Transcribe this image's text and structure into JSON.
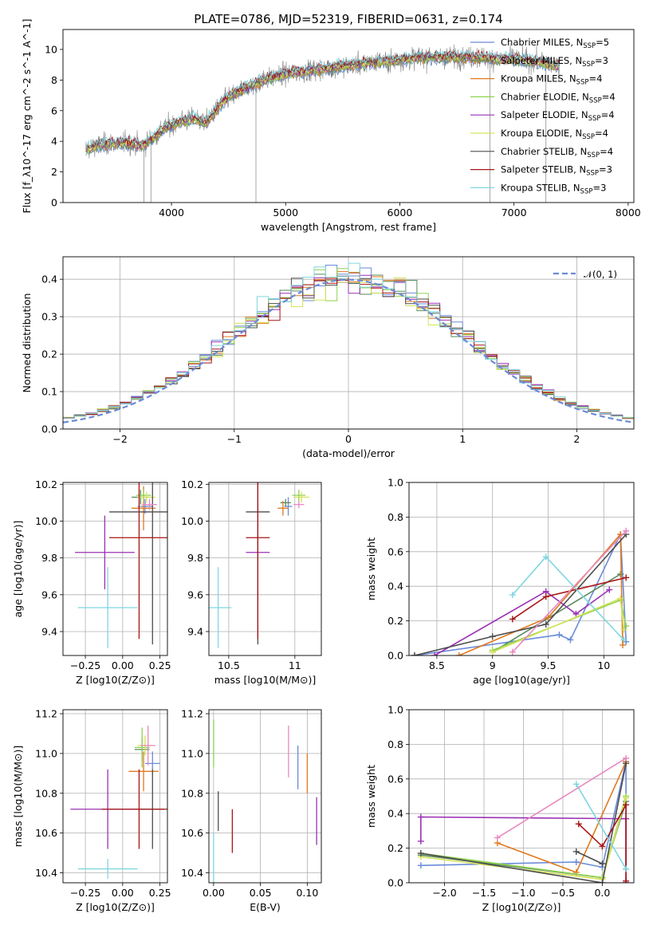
{
  "figure_title": "PLATE=0786, MJD=52319, FIBERID=0631, z=0.174",
  "colors": {
    "chabrier_miles": "#6a8bd8",
    "salpeter_miles": "#5a8a5a",
    "kroupa_miles": "#e07a1e",
    "chabrier_elodie": "#8fd14f",
    "salpeter_elodie": "#9b30b6",
    "kroupa_elodie": "#d6e35a",
    "chabrier_stelib": "#4d4d4d",
    "salpeter_stelib": "#a81414",
    "kroupa_stelib": "#7fd6e0",
    "data": "#808080",
    "pink": "#e889c0"
  },
  "chart_data": [
    {
      "id": "spectrum",
      "type": "line",
      "xlabel": "wavelength [Angstrom, rest frame]",
      "ylabel": "Flux [f_λ10^-17 erg cm^-2 s^-1 A^-1]",
      "xlim": [
        3050,
        8050
      ],
      "ylim": [
        0,
        11.3
      ],
      "xticks": [
        4000,
        5000,
        6000,
        7000,
        8000
      ],
      "yticks": [
        0,
        2,
        4,
        6,
        8,
        10
      ],
      "legend_position": "upper-right",
      "legend": [
        {
          "text": "Chabrier MILES, N",
          "sub": "SSP",
          "suffix": "=5",
          "color_key": "chabrier_miles"
        },
        {
          "text": "Salpeter MILES, N",
          "sub": "SSP",
          "suffix": "=3",
          "color_key": "salpeter_miles"
        },
        {
          "text": "Kroupa MILES, N",
          "sub": "SSP",
          "suffix": "=4",
          "color_key": "kroupa_miles"
        },
        {
          "text": "Chabrier ELODIE, N",
          "sub": "SSP",
          "suffix": "=4",
          "color_key": "chabrier_elodie"
        },
        {
          "text": "Salpeter ELODIE, N",
          "sub": "SSP",
          "suffix": "=4",
          "color_key": "salpeter_elodie"
        },
        {
          "text": "Kroupa ELODIE, N",
          "sub": "SSP",
          "suffix": "=4",
          "color_key": "kroupa_elodie"
        },
        {
          "text": "Chabrier STELIB, N",
          "sub": "SSP",
          "suffix": "=4",
          "color_key": "chabrier_stelib"
        },
        {
          "text": "Salpeter STELIB, N",
          "sub": "SSP",
          "suffix": "=3",
          "color_key": "salpeter_stelib"
        },
        {
          "text": "Kroupa STELIB, N",
          "sub": "SSP",
          "suffix": "=3",
          "color_key": "kroupa_stelib"
        }
      ],
      "continuum": [
        [
          3250,
          3.5
        ],
        [
          3400,
          3.8
        ],
        [
          3600,
          3.9
        ],
        [
          3750,
          3.7
        ],
        [
          3850,
          4.3
        ],
        [
          3950,
          4.9
        ],
        [
          4050,
          5.2
        ],
        [
          4200,
          5.5
        ],
        [
          4300,
          5.2
        ],
        [
          4450,
          6.6
        ],
        [
          4600,
          7.3
        ],
        [
          4800,
          8.0
        ],
        [
          5000,
          8.4
        ],
        [
          5200,
          8.6
        ],
        [
          5400,
          8.8
        ],
        [
          5600,
          9.0
        ],
        [
          5800,
          9.2
        ],
        [
          6000,
          9.3
        ],
        [
          6200,
          9.5
        ],
        [
          6400,
          9.5
        ],
        [
          6600,
          9.5
        ],
        [
          6800,
          9.4
        ],
        [
          7000,
          9.4
        ],
        [
          7200,
          9.2
        ],
        [
          7400,
          8.9
        ]
      ],
      "data_line": {
        "x_start": 3250,
        "x_end": 7400,
        "noise": 0.9
      },
      "spikes": [
        {
          "x": 3760,
          "to": 0
        },
        {
          "x": 3820,
          "to": 0
        },
        {
          "x": 4740,
          "to": 0
        },
        {
          "x": 6790,
          "to": 0
        },
        {
          "x": 7280,
          "to": 0
        }
      ]
    },
    {
      "id": "residuals",
      "type": "histogram",
      "xlabel": "(data-model)/error",
      "ylabel": "Normed distribution",
      "xlim": [
        -2.5,
        2.5
      ],
      "ylim": [
        0,
        0.46
      ],
      "xticks": [
        -2,
        -1,
        0,
        1,
        2
      ],
      "yticks": [
        0.0,
        0.1,
        0.2,
        0.3,
        0.4
      ],
      "legend": "𝒩(0, 1)",
      "legend_position": "upper-right",
      "bins": {
        "start": -2.5,
        "width": 0.1,
        "count": 50
      }
    },
    {
      "id": "age_vs_Z",
      "type": "scatter-errorbar",
      "xlabel": "Z [log10(Z/Z⊙)]",
      "ylabel": "age  [log10(age/yr)]",
      "xlim": [
        -0.4,
        0.3
      ],
      "ylim": [
        9.27,
        10.21
      ],
      "xticks": [
        -0.25,
        0.0,
        0.25
      ],
      "xticklabels": [
        "−0.25",
        "0.00",
        "0.25"
      ],
      "yticks": [
        9.4,
        9.6,
        9.8,
        10.0,
        10.2
      ],
      "points": [
        {
          "c": "chabrier_miles",
          "x": 0.15,
          "y": 10.08,
          "xerr": 0.05,
          "yerr": 0.04
        },
        {
          "c": "salpeter_miles",
          "x": 0.12,
          "y": 10.13,
          "xerr": 0.06,
          "yerr": 0.04
        },
        {
          "c": "kroupa_miles",
          "x": 0.14,
          "y": 10.07,
          "xerr": 0.08,
          "yerr": 0.12
        },
        {
          "c": "chabrier_elodie",
          "x": 0.14,
          "y": 10.14,
          "xerr": 0.05,
          "yerr": 0.03
        },
        {
          "c": "salpeter_elodie",
          "x": -0.12,
          "y": 9.83,
          "xerr": 0.2,
          "yerr": 0.2
        },
        {
          "c": "kroupa_elodie",
          "x": 0.16,
          "y": 10.13,
          "xerr": 0.06,
          "yerr": 0.03
        },
        {
          "c": "chabrier_stelib",
          "x": 0.2,
          "y": 10.05,
          "xerr": 0.29,
          "yerr": 0.72
        },
        {
          "c": "salpeter_stelib",
          "x": 0.11,
          "y": 9.91,
          "xerr": 0.2,
          "yerr": 0.55
        },
        {
          "c": "kroupa_stelib",
          "x": -0.1,
          "y": 9.53,
          "xerr": 0.2,
          "yerr": 0.22
        },
        {
          "c": "pink",
          "x": 0.18,
          "y": 10.09,
          "xerr": 0.05,
          "yerr": 0.03
        }
      ]
    },
    {
      "id": "age_vs_mass",
      "type": "scatter-errorbar",
      "xlabel": "mass [log10(M/M⊙)]",
      "ylabel": "",
      "xlim": [
        10.35,
        11.2
      ],
      "ylim": [
        9.27,
        10.21
      ],
      "xticks": [
        10.5,
        11.0
      ],
      "yticks": [
        9.4,
        9.6,
        9.8,
        10.0,
        10.2
      ],
      "points": [
        {
          "c": "chabrier_miles",
          "x": 10.95,
          "y": 10.08,
          "xerr": 0.03,
          "yerr": 0.05
        },
        {
          "c": "salpeter_miles",
          "x": 10.93,
          "y": 10.1,
          "xerr": 0.04,
          "yerr": 0.02
        },
        {
          "c": "kroupa_miles",
          "x": 10.91,
          "y": 10.07,
          "xerr": 0.04,
          "yerr": 0.04
        },
        {
          "c": "chabrier_elodie",
          "x": 11.03,
          "y": 10.14,
          "xerr": 0.05,
          "yerr": 0.03
        },
        {
          "c": "salpeter_elodie",
          "x": 10.72,
          "y": 9.83,
          "xerr": 0.09,
          "yerr": 0.01
        },
        {
          "c": "kroupa_elodie",
          "x": 11.05,
          "y": 10.13,
          "xerr": 0.06,
          "yerr": 0.03
        },
        {
          "c": "chabrier_stelib",
          "x": 10.72,
          "y": 10.05,
          "xerr": 0.09,
          "yerr": 0.72
        },
        {
          "c": "salpeter_stelib",
          "x": 10.72,
          "y": 9.91,
          "xerr": 0.09,
          "yerr": 0.55
        },
        {
          "c": "kroupa_stelib",
          "x": 10.42,
          "y": 9.53,
          "xerr": 0.1,
          "yerr": 0.22
        },
        {
          "c": "pink",
          "x": 11.03,
          "y": 10.09,
          "xerr": 0.04,
          "yerr": 0.02
        }
      ]
    },
    {
      "id": "massweight_vs_age",
      "type": "line",
      "xlabel": "age  [log10(age/yr)]",
      "ylabel": "mass weight",
      "xlim": [
        8.25,
        10.27
      ],
      "ylim": [
        0,
        1.0
      ],
      "xticks": [
        8.5,
        9.0,
        9.5,
        10.0
      ],
      "yticks": [
        0.0,
        0.2,
        0.4,
        0.6,
        0.8,
        1.0
      ],
      "series": [
        {
          "c": "chabrier_miles",
          "x": [
            8.3,
            9.6,
            9.7,
            10.15,
            10.2
          ],
          "y": [
            0.0,
            0.12,
            0.09,
            0.7,
            0.08
          ]
        },
        {
          "c": "salpeter_miles",
          "x": [
            9.0,
            10.15
          ],
          "y": [
            0.02,
            0.47
          ]
        },
        {
          "c": "kroupa_miles",
          "x": [
            8.7,
            9.5,
            10.15,
            10.17
          ],
          "y": [
            0.0,
            0.22,
            0.7,
            0.06
          ]
        },
        {
          "c": "chabrier_elodie",
          "x": [
            9.0,
            10.15,
            10.2
          ],
          "y": [
            0.03,
            0.32,
            0.17
          ]
        },
        {
          "c": "salpeter_elodie",
          "x": [
            8.48,
            9.48,
            9.75,
            10.05
          ],
          "y": [
            0.0,
            0.37,
            0.24,
            0.38
          ]
        },
        {
          "c": "kroupa_elodie",
          "x": [
            9.0,
            10.15,
            10.18
          ],
          "y": [
            0.02,
            0.33,
            0.15
          ]
        },
        {
          "c": "chabrier_stelib",
          "x": [
            8.3,
            9.0,
            9.48,
            10.2
          ],
          "y": [
            0.0,
            0.11,
            0.18,
            0.7
          ]
        },
        {
          "c": "salpeter_stelib",
          "x": [
            9.18,
            9.48,
            10.2
          ],
          "y": [
            0.21,
            0.34,
            0.45
          ]
        },
        {
          "c": "kroupa_stelib",
          "x": [
            9.18,
            9.48,
            10.18
          ],
          "y": [
            0.35,
            0.57,
            0.09
          ]
        },
        {
          "c": "pink",
          "x": [
            9.18,
            10.2
          ],
          "y": [
            0.02,
            0.72
          ]
        }
      ]
    },
    {
      "id": "mass_vs_Z",
      "type": "scatter-errorbar",
      "xlabel": "Z [log10(Z/Z⊙)]",
      "ylabel": "mass [log10(M/M⊙)]",
      "xlim": [
        -0.4,
        0.3
      ],
      "ylim": [
        10.35,
        11.22
      ],
      "xticks": [
        -0.25,
        0.0,
        0.25
      ],
      "xticklabels": [
        "−0.25",
        "0.00",
        "0.25"
      ],
      "yticks": [
        10.4,
        10.6,
        10.8,
        11.0,
        11.2
      ],
      "points": [
        {
          "c": "chabrier_miles",
          "x": 0.2,
          "y": 10.95,
          "xerr": 0.05,
          "yerr": 0.06
        },
        {
          "c": "salpeter_miles",
          "x": 0.13,
          "y": 11.02,
          "xerr": 0.05,
          "yerr": 0.06
        },
        {
          "c": "kroupa_miles",
          "x": 0.14,
          "y": 10.91,
          "xerr": 0.1,
          "yerr": 0.1
        },
        {
          "c": "chabrier_elodie",
          "x": 0.13,
          "y": 11.03,
          "xerr": 0.05,
          "yerr": 0.1
        },
        {
          "c": "salpeter_elodie",
          "x": -0.1,
          "y": 10.72,
          "xerr": 0.25,
          "yerr": 0.2
        },
        {
          "c": "kroupa_elodie",
          "x": 0.15,
          "y": 11.04,
          "xerr": 0.05,
          "yerr": 0.05
        },
        {
          "c": "chabrier_stelib",
          "x": 0.2,
          "y": 10.72,
          "xerr": 0.08,
          "yerr": 0.2
        },
        {
          "c": "salpeter_stelib",
          "x": 0.11,
          "y": 10.72,
          "xerr": 0.25,
          "yerr": 0.2
        },
        {
          "c": "kroupa_stelib",
          "x": -0.1,
          "y": 10.42,
          "xerr": 0.2,
          "yerr": 0.05
        },
        {
          "c": "pink",
          "x": 0.17,
          "y": 11.04,
          "xerr": 0.05,
          "yerr": 0.1
        }
      ]
    },
    {
      "id": "mass_vs_ebv",
      "type": "scatter-errorbar",
      "xlabel": "E(B-V)",
      "ylabel": "",
      "xlim": [
        -0.005,
        0.115
      ],
      "ylim": [
        10.35,
        11.22
      ],
      "xticks": [
        0.0,
        0.05,
        0.1
      ],
      "xticklabels": [
        "0.00",
        "0.05",
        "0.10"
      ],
      "yticks": [
        10.4,
        10.6,
        10.8,
        11.0,
        11.2
      ],
      "points": [
        {
          "c": "chabrier_miles",
          "x": 0.09,
          "y": 10.93,
          "xerr": 0,
          "yerr": 0.11
        },
        {
          "c": "kroupa_miles",
          "x": 0.1,
          "y": 10.9,
          "xerr": 0,
          "yerr": 0.1
        },
        {
          "c": "chabrier_elodie",
          "x": 0.0,
          "y": 11.05,
          "xerr": 0,
          "yerr": 0.12
        },
        {
          "c": "salpeter_elodie",
          "x": 0.11,
          "y": 10.66,
          "xerr": 0,
          "yerr": 0.12
        },
        {
          "c": "chabrier_stelib",
          "x": 0.005,
          "y": 10.71,
          "xerr": 0,
          "yerr": 0.1
        },
        {
          "c": "salpeter_stelib",
          "x": 0.02,
          "y": 10.61,
          "xerr": 0,
          "yerr": 0.11
        },
        {
          "c": "kroupa_stelib",
          "x": 0.0,
          "y": 10.45,
          "xerr": 0,
          "yerr": 0.15
        },
        {
          "c": "pink",
          "x": 0.08,
          "y": 11.01,
          "xerr": 0,
          "yerr": 0.13
        }
      ]
    },
    {
      "id": "massweight_vs_Z",
      "type": "line",
      "xlabel": "Z [log10(Z/Z⊙)]",
      "ylabel": "mass weight",
      "xlim": [
        -2.45,
        0.4
      ],
      "ylim": [
        0,
        1.0
      ],
      "xticks": [
        -2.0,
        -1.5,
        -1.0,
        -0.5,
        0.0
      ],
      "xticklabels": [
        "−2.0",
        "−1.5",
        "−1.0",
        "−0.5",
        "0.0"
      ],
      "yticks": [
        0.0,
        0.2,
        0.4,
        0.6,
        0.8,
        1.0
      ],
      "series": [
        {
          "c": "chabrier_miles",
          "x": [
            -2.3,
            -0.33,
            0.0,
            0.3,
            0.3
          ],
          "y": [
            0.1,
            0.12,
            0.09,
            0.7,
            0.08
          ]
        },
        {
          "c": "salpeter_miles",
          "x": [
            -2.3,
            0.0,
            0.3
          ],
          "y": [
            0.16,
            0.03,
            0.47
          ]
        },
        {
          "c": "kroupa_miles",
          "x": [
            -1.33,
            -0.33,
            0.3
          ],
          "y": [
            0.23,
            0.06,
            0.7
          ]
        },
        {
          "c": "chabrier_elodie",
          "x": [
            -2.3,
            0.0,
            0.3
          ],
          "y": [
            0.17,
            0.03,
            0.5
          ]
        },
        {
          "c": "salpeter_elodie",
          "x": [
            -2.3,
            -2.3,
            0.3,
            0.3
          ],
          "y": [
            0.24,
            0.38,
            0.37,
            0.0
          ]
        },
        {
          "c": "kroupa_elodie",
          "x": [
            -2.3,
            0.0,
            0.3
          ],
          "y": [
            0.15,
            0.02,
            0.49
          ]
        },
        {
          "c": "chabrier_stelib",
          "x": [
            -2.3,
            0.0,
            0.3
          ],
          "y": [
            0.17,
            0.0,
            0.69
          ]
        },
        {
          "c": "salpeter_stelib",
          "x": [
            -0.3,
            0.0,
            0.3,
            0.3
          ],
          "y": [
            0.34,
            0.21,
            0.45,
            0.01
          ]
        },
        {
          "c": "kroupa_stelib",
          "x": [
            -0.33,
            0.3
          ],
          "y": [
            0.57,
            0.08
          ]
        },
        {
          "c": "pink",
          "x": [
            -1.33,
            0.3
          ],
          "y": [
            0.26,
            0.72
          ]
        },
        {
          "c": "chabrier_stelib",
          "x": [
            -0.33,
            0.0
          ],
          "y": [
            0.18,
            0.11
          ]
        }
      ]
    }
  ]
}
